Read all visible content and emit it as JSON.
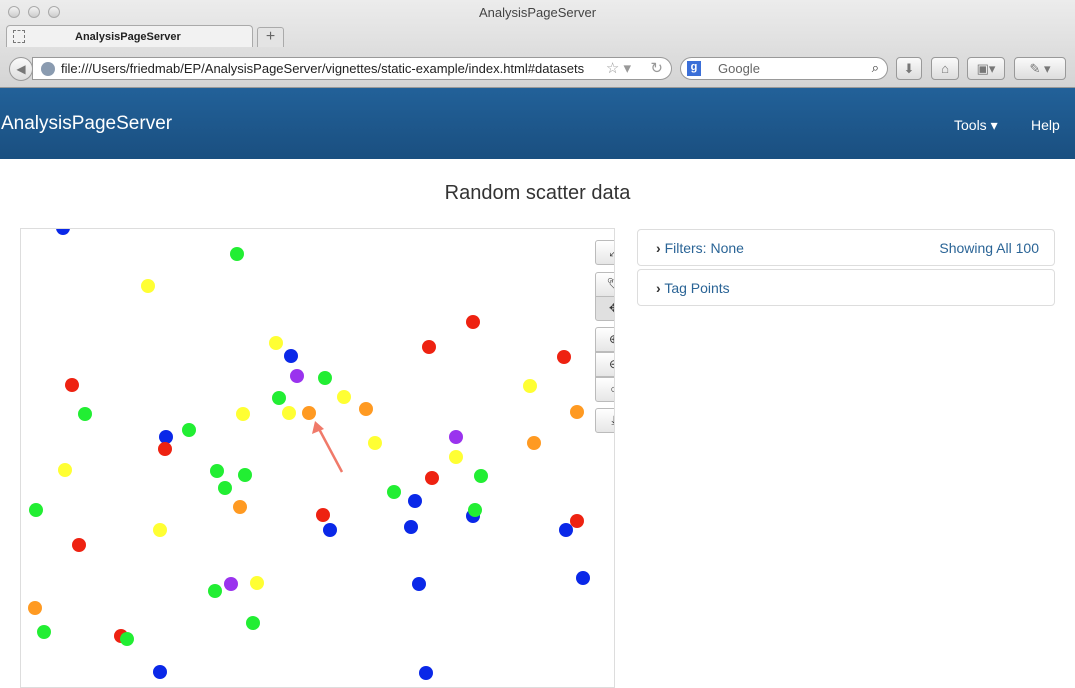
{
  "browser": {
    "window_title": "AnalysisPageServer",
    "tab_title": "AnalysisPageServer",
    "new_tab": "+",
    "url": "file:///Users/friedmab/EP/AnalysisPageServer/vignettes/static-example/index.html#datasets",
    "search_placeholder": "Google"
  },
  "navbar": {
    "brand": "AnalysisPageServer",
    "tools": "Tools ▾",
    "help": "Help"
  },
  "main": {
    "title": "Random scatter data"
  },
  "plot_toolbar": [
    {
      "name": "fullscreen",
      "glyph": "⤢"
    },
    {
      "name": "tag",
      "glyph": "🏷"
    },
    {
      "name": "pan",
      "glyph": "✥"
    },
    {
      "name": "zoom-in",
      "glyph": "⊕"
    },
    {
      "name": "zoom-out",
      "glyph": "⊖"
    },
    {
      "name": "reset",
      "glyph": "○"
    },
    {
      "name": "download",
      "glyph": "⤓"
    }
  ],
  "panels": {
    "filters": {
      "label": "Filters: None",
      "status": "Showing All 100"
    },
    "tag_points": {
      "label": "Tag Points"
    }
  },
  "colors": {
    "navbar": "#1f5a8f",
    "link": "#2a6496",
    "blue": "#0a28e8",
    "green": "#22ee33",
    "yellow": "#ffff33",
    "red": "#ee2211",
    "orange": "#ff9a22",
    "purple": "#9a33ee",
    "arrow": "#f07a6a"
  }
}
